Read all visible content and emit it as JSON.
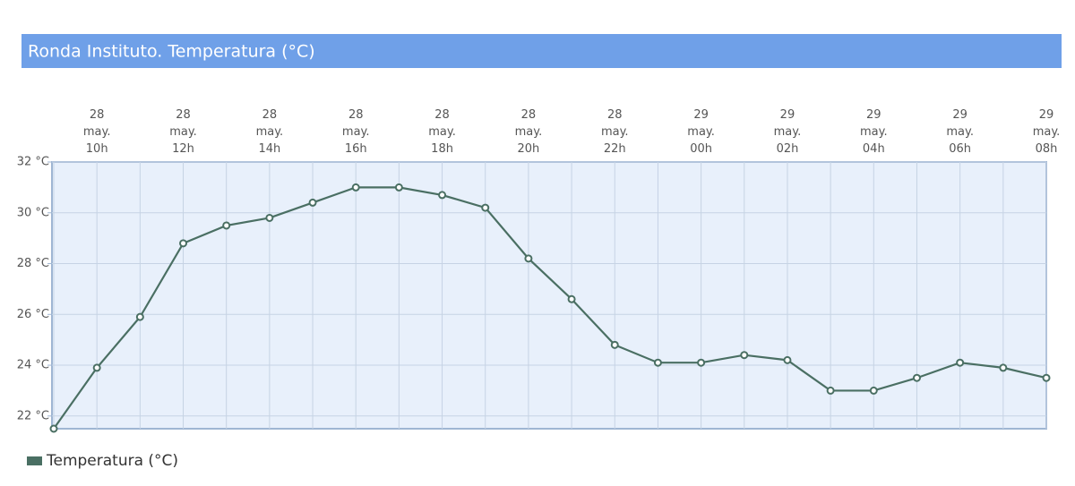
{
  "chart_data": {
    "type": "line",
    "title": "Ronda Instituto. Temperatura (°C)",
    "categories": [
      null,
      [
        "28",
        "may.",
        "10h"
      ],
      null,
      [
        "28",
        "may.",
        "12h"
      ],
      null,
      [
        "28",
        "may.",
        "14h"
      ],
      null,
      [
        "28",
        "may.",
        "16h"
      ],
      null,
      [
        "28",
        "may.",
        "18h"
      ],
      null,
      [
        "28",
        "may.",
        "20h"
      ],
      null,
      [
        "28",
        "may.",
        "22h"
      ],
      null,
      [
        "29",
        "may.",
        "00h"
      ],
      null,
      [
        "29",
        "may.",
        "02h"
      ],
      null,
      [
        "29",
        "may.",
        "04h"
      ],
      null,
      [
        "29",
        "may.",
        "06h"
      ],
      null,
      [
        "29",
        "may.",
        "08h"
      ]
    ],
    "series": [
      {
        "name": "Temperatura (°C)",
        "color": "#4a6f63",
        "values": [
          21.5,
          23.9,
          25.9,
          28.8,
          29.5,
          29.8,
          30.4,
          31.0,
          31.0,
          30.7,
          30.2,
          28.2,
          26.6,
          24.8,
          24.1,
          24.1,
          24.4,
          24.2,
          23.0,
          23.0,
          23.5,
          24.1,
          23.9,
          23.5
        ]
      }
    ],
    "ylim": [
      21.5,
      32
    ],
    "yticks": [
      {
        "value": 22,
        "label": "22 °C"
      },
      {
        "value": 24,
        "label": "24 °C"
      },
      {
        "value": 26,
        "label": "26 °C"
      },
      {
        "value": 28,
        "label": "28 °C"
      },
      {
        "value": 30,
        "label": "30 °C"
      },
      {
        "value": 32,
        "label": "32 °C"
      }
    ],
    "grid": true
  }
}
